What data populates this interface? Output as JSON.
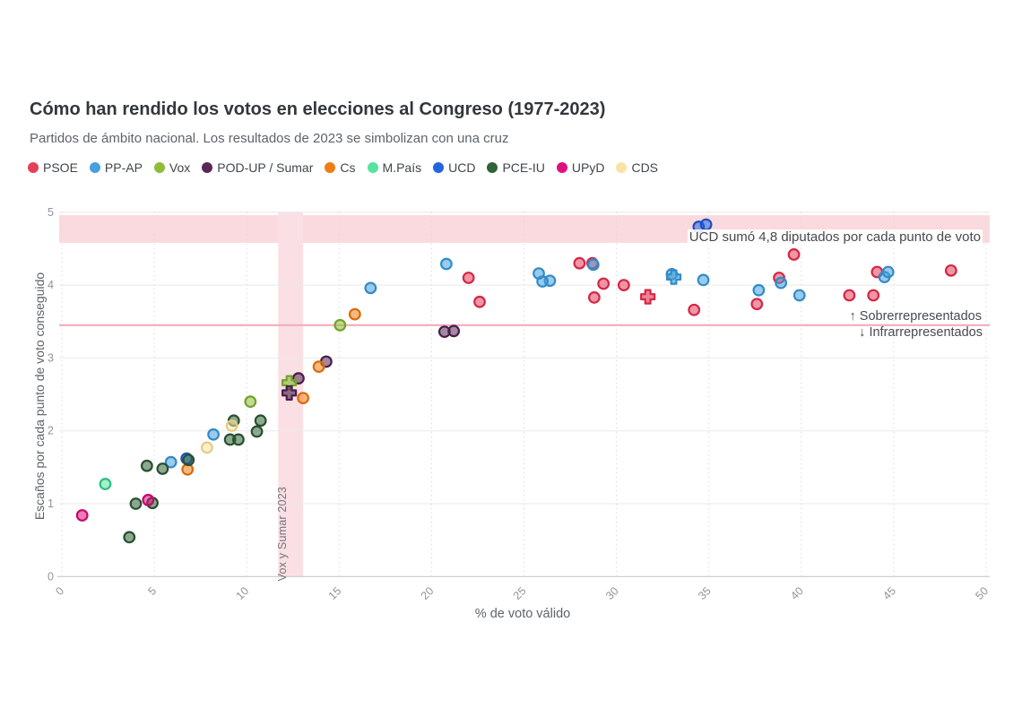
{
  "header": {
    "title": "Cómo han rendido los votos en elecciones al Congreso (1977-2023)",
    "subtitle": "Partidos de ámbito nacional. Los resultados de 2023 se simbolizan con una cruz"
  },
  "annotations": {
    "ucd_note": "UCD sumó 4,8 diputados por cada punto de voto",
    "over_label": "↑ Sobrerrepresentados",
    "under_label": "↓ Infrarrepresentados",
    "vertical_band_label": "Vox y Sumar 2023"
  },
  "chart_data": {
    "type": "scatter",
    "title": "Cómo han rendido los votos en elecciones al Congreso (1977-2023)",
    "xlabel": "% de voto válido",
    "ylabel": "Escaños por cada punto de voto conseguido",
    "xlim": [
      0,
      50
    ],
    "ylim": [
      0,
      5
    ],
    "xticks": [
      0,
      5,
      10,
      15,
      20,
      25,
      30,
      35,
      40,
      45,
      50
    ],
    "yticks": [
      0,
      1,
      2,
      3,
      4,
      5
    ],
    "grid": {
      "horizontal": "solid",
      "vertical": "dotted"
    },
    "legend_position": "top",
    "threshold_line_y": 3.45,
    "top_band": {
      "from": 4.58,
      "to": 4.96,
      "color": "#fadade"
    },
    "vertical_band": {
      "from": 11.7,
      "to": 13.05,
      "color": "#fae0e4"
    },
    "series": [
      {
        "name": "PSOE",
        "color": "#e4405a",
        "stroke": "#d32746",
        "points": [
          [
            29.3,
            4.02
          ],
          [
            30.4,
            4.0
          ],
          [
            48.1,
            4.2
          ],
          [
            44.1,
            4.18
          ],
          [
            39.6,
            4.42
          ],
          [
            38.8,
            4.1
          ],
          [
            37.6,
            3.74
          ],
          [
            34.2,
            3.66
          ],
          [
            42.6,
            3.86
          ],
          [
            43.9,
            3.86
          ],
          [
            28.8,
            3.83
          ],
          [
            22.0,
            4.1
          ],
          [
            22.6,
            3.77
          ],
          [
            28.7,
            4.3
          ],
          [
            28.0,
            4.3
          ]
        ],
        "cross": [
          31.7,
          3.84
        ]
      },
      {
        "name": "PP-AP",
        "color": "#45a1dc",
        "stroke": "#338bc7",
        "points": [
          [
            8.2,
            1.95
          ],
          [
            5.9,
            1.57
          ],
          [
            26.4,
            4.06
          ],
          [
            26.0,
            4.05
          ],
          [
            25.8,
            4.16
          ],
          [
            34.7,
            4.07
          ],
          [
            38.9,
            4.03
          ],
          [
            44.5,
            4.11
          ],
          [
            37.7,
            3.93
          ],
          [
            39.9,
            3.86
          ],
          [
            44.7,
            4.18
          ],
          [
            28.75,
            4.28
          ],
          [
            33.0,
            4.15
          ],
          [
            16.7,
            3.96
          ],
          [
            20.8,
            4.29
          ]
        ],
        "cross": [
          33.1,
          4.11
        ]
      },
      {
        "name": "Vox",
        "color": "#8cbe3c",
        "stroke": "#74a22a",
        "points": [
          [
            10.2,
            2.4
          ],
          [
            15.05,
            3.45
          ]
        ],
        "cross": [
          12.3,
          2.66
        ]
      },
      {
        "name": "POD-UP / Sumar",
        "color": "#592758",
        "stroke": "#471f47",
        "points": [
          [
            20.7,
            3.36
          ],
          [
            21.2,
            3.37
          ],
          [
            14.3,
            2.95
          ],
          [
            12.8,
            2.72
          ]
        ],
        "cross": [
          12.3,
          2.52
        ]
      },
      {
        "name": "Cs",
        "color": "#ee7d17",
        "stroke": "#d96b0a",
        "points": [
          [
            13.9,
            2.88
          ],
          [
            13.05,
            2.45
          ],
          [
            15.85,
            3.6
          ],
          [
            6.8,
            1.47
          ]
        ],
        "cross": null
      },
      {
        "name": "M.País",
        "color": "#57e3a2",
        "stroke": "#2dbd7e",
        "points": [
          [
            2.35,
            1.27
          ]
        ],
        "cross": null
      },
      {
        "name": "UCD",
        "color": "#2365e0",
        "stroke": "#1d4fc4",
        "points": [
          [
            34.45,
            4.8
          ],
          [
            34.85,
            4.83
          ],
          [
            6.75,
            1.62
          ]
        ],
        "cross": null
      },
      {
        "name": "PCE-IU",
        "color": "#2f6339",
        "stroke": "#27502e",
        "points": [
          [
            9.3,
            2.14
          ],
          [
            10.75,
            2.14
          ],
          [
            4.0,
            1.0
          ],
          [
            4.6,
            1.52
          ],
          [
            9.1,
            1.88
          ],
          [
            9.55,
            1.88
          ],
          [
            10.55,
            1.99
          ],
          [
            5.45,
            1.48
          ],
          [
            4.9,
            1.01
          ],
          [
            3.65,
            0.54
          ],
          [
            6.85,
            1.6
          ]
        ],
        "cross": null
      },
      {
        "name": "UPyD",
        "color": "#e00f7e",
        "stroke": "#bf0b6b",
        "points": [
          [
            1.1,
            0.84
          ],
          [
            4.67,
            1.05
          ]
        ],
        "cross": null
      },
      {
        "name": "CDS",
        "color": "#f9e3a3",
        "stroke": "#e5cb85",
        "points": [
          [
            9.2,
            2.07
          ],
          [
            7.85,
            1.77
          ]
        ],
        "cross": null
      }
    ]
  },
  "colors": {
    "h_gridline": "#e9e9e9",
    "v_gridline": "#d9d9d9",
    "axis_line": "#c9c9c9",
    "tick_label": "#8f959a",
    "threshold_line": "#f3aebc"
  }
}
